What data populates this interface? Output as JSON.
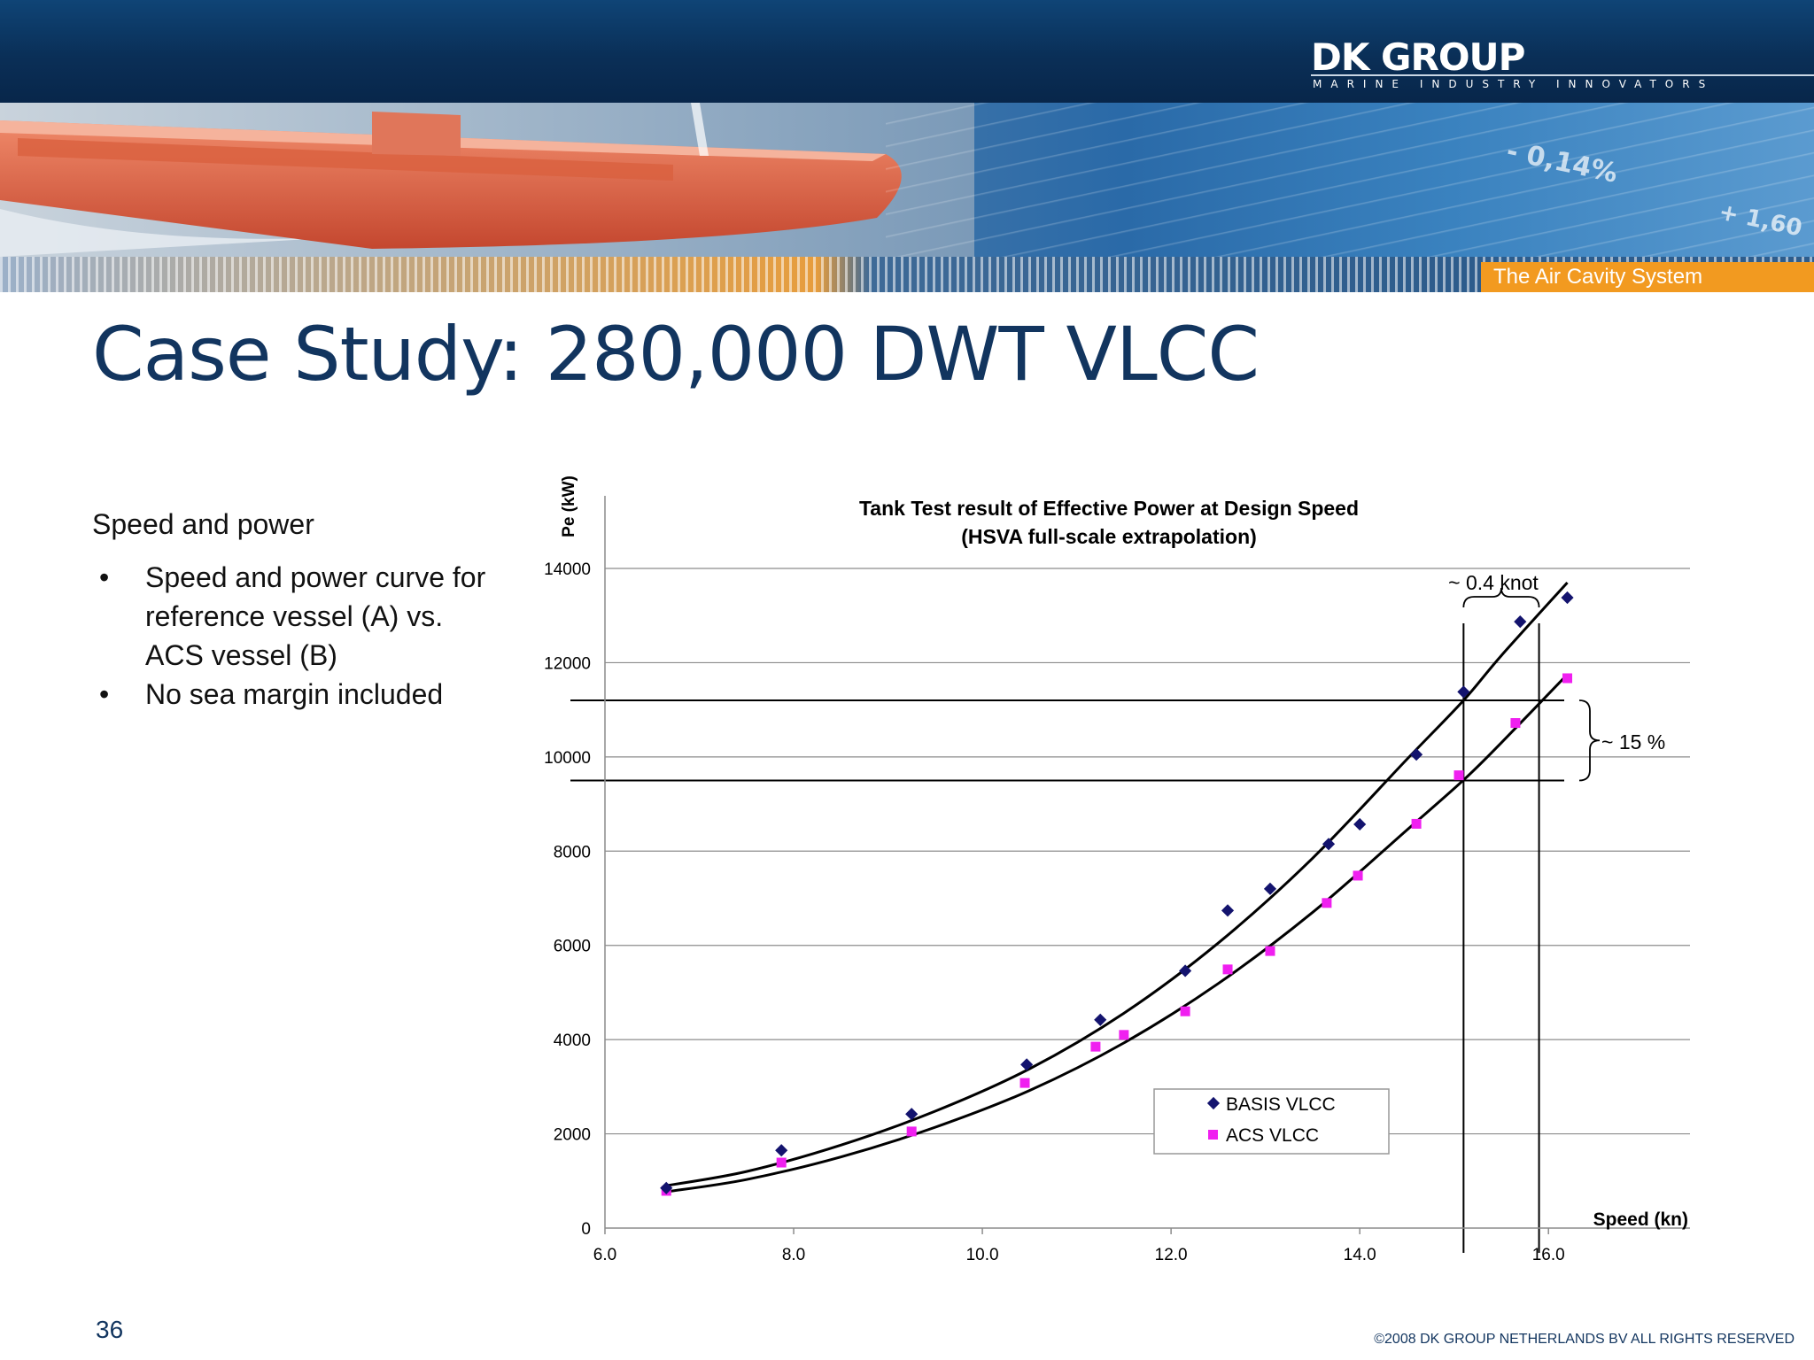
{
  "header": {
    "logo": "DK GROUP",
    "tagline": "MARINE INDUSTRY INNOVATORS",
    "tag": "The Air Cavity System",
    "photo_texts": [
      "- 0,14%",
      "+ 1,60"
    ]
  },
  "slide": {
    "title": "Case Study: 280,000 DWT VLCC",
    "subheading": "Speed and power",
    "bullets": [
      "Speed and power curve for reference vessel (A) vs. ACS vessel (B)",
      "No sea margin included"
    ],
    "bullet_symbol": "•",
    "page_number": "36",
    "copyright": "©2008 DK GROUP NETHERLANDS BV  ALL RIGHTS RESERVED"
  },
  "colors": {
    "navy": "#12355f",
    "orange": "#f29a20",
    "basis_marker": "#13136e",
    "acs_marker": "#f01ff0"
  },
  "chart_data": {
    "type": "scatter",
    "title": "Tank Test result of Effective Power at Design Speed",
    "subtitle": "(HSVA full-scale extrapolation)",
    "xlabel": "Speed (kn)",
    "ylabel": "Pe (kW)",
    "xlim": [
      6.0,
      17.5
    ],
    "ylim": [
      0,
      14000
    ],
    "x_ticks": [
      "6.0",
      "8.0",
      "10.0",
      "12.0",
      "14.0",
      "16.0"
    ],
    "y_ticks": [
      "0",
      "2000",
      "4000",
      "6000",
      "8000",
      "10000",
      "12000",
      "14000"
    ],
    "grid": "horizontal",
    "legend_position": "bottom-center",
    "series": [
      {
        "name": "BASIS VLCC",
        "marker": "diamond",
        "x": [
          6.65,
          7.87,
          9.25,
          10.47,
          11.25,
          12.15,
          12.6,
          13.05,
          13.67,
          14.0,
          14.6,
          15.1,
          15.7,
          16.2
        ],
        "y": [
          850,
          1650,
          2420,
          3470,
          4420,
          5460,
          6740,
          7200,
          8150,
          8570,
          10050,
          11380,
          12870,
          13380
        ]
      },
      {
        "name": "ACS VLCC",
        "marker": "square",
        "x": [
          6.65,
          7.87,
          9.25,
          10.45,
          11.2,
          11.5,
          12.15,
          12.6,
          13.05,
          13.65,
          13.98,
          14.6,
          15.05,
          15.65,
          16.2
        ],
        "y": [
          790,
          1390,
          2050,
          3080,
          3850,
          4100,
          4600,
          5490,
          5880,
          6900,
          7480,
          8580,
          9610,
          10720,
          11670
        ]
      }
    ],
    "trend_lines": [
      {
        "series": "BASIS VLCC",
        "x": [
          6.65,
          7.5,
          8.5,
          9.5,
          10.5,
          11.5,
          12.5,
          13.5,
          14.5,
          15.1,
          15.5,
          16.2
        ],
        "y": [
          900,
          1200,
          1760,
          2480,
          3380,
          4560,
          6050,
          7850,
          9950,
          11200,
          12150,
          13700
        ]
      },
      {
        "series": "ACS VLCC",
        "x": [
          6.65,
          7.5,
          8.5,
          9.5,
          10.5,
          11.5,
          12.5,
          13.5,
          14.5,
          15.1,
          15.5,
          16.2
        ],
        "y": [
          770,
          1030,
          1510,
          2140,
          2920,
          3930,
          5190,
          6700,
          8450,
          9510,
          10300,
          11750
        ]
      }
    ],
    "reference_lines": {
      "horizontal": [
        11200,
        9500
      ],
      "vertical": [
        15.1,
        15.9
      ]
    },
    "annotations": [
      "~ 0.4 knot",
      "~ 15 %"
    ]
  }
}
